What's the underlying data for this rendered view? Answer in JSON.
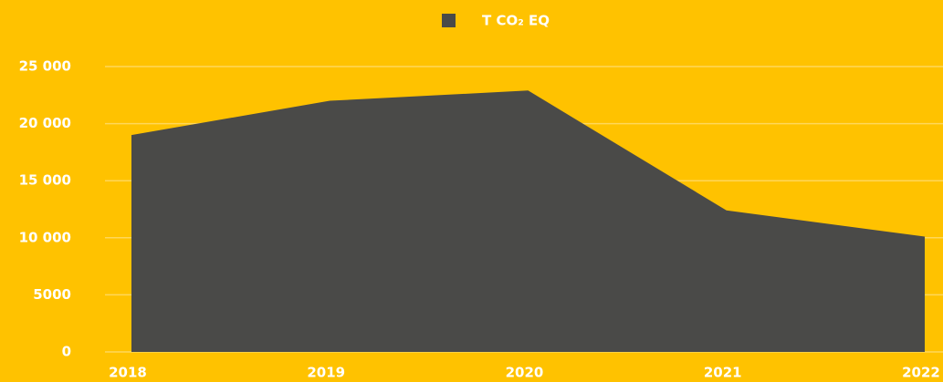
{
  "chart_data": {
    "type": "area",
    "categories": [
      "2018",
      "2019",
      "2020",
      "2021",
      "2022"
    ],
    "series": [
      {
        "name": "T CO₂ EQ",
        "color": "#4a4a48",
        "values": [
          19000,
          22000,
          22900,
          12400,
          10100
        ]
      }
    ],
    "ylim": [
      0,
      25000
    ],
    "yticks": [
      0,
      5000,
      {
        "value": 10000,
        "label": "10 000"
      },
      {
        "value": 15000,
        "label": "15 000"
      },
      {
        "value": 20000,
        "label": "20 000"
      },
      {
        "value": 25000,
        "label": "25 000"
      }
    ],
    "grid": true,
    "legend": "top"
  }
}
